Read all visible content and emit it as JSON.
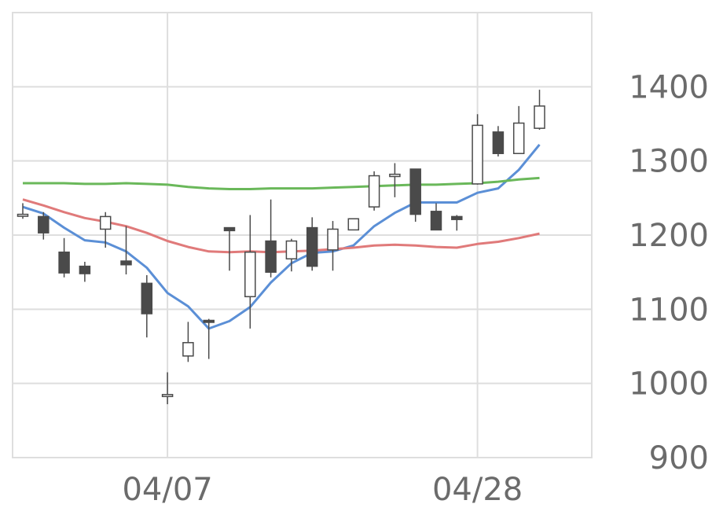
{
  "chart_data": {
    "type": "candlestick",
    "x_ticks": [
      {
        "label": "04/07",
        "index": 7
      },
      {
        "label": "04/28",
        "index": 22
      }
    ],
    "y_ticks": [
      900,
      1000,
      1100,
      1200,
      1300,
      1400
    ],
    "ylim": [
      900,
      1500
    ],
    "grid": true,
    "y_axis_position": "right",
    "candles": [
      {
        "i": 0,
        "open": 1228,
        "close": 1228,
        "high": 1243,
        "low": 1222
      },
      {
        "i": 1,
        "open": 1225,
        "close": 1203,
        "high": 1231,
        "low": 1194
      },
      {
        "i": 2,
        "open": 1177,
        "close": 1149,
        "high": 1196,
        "low": 1143
      },
      {
        "i": 3,
        "open": 1158,
        "close": 1148,
        "high": 1164,
        "low": 1137
      },
      {
        "i": 4,
        "open": 1208,
        "close": 1225,
        "high": 1231,
        "low": 1183
      },
      {
        "i": 5,
        "open": 1165,
        "close": 1160,
        "high": 1212,
        "low": 1147
      },
      {
        "i": 6,
        "open": 1135,
        "close": 1094,
        "high": 1146,
        "low": 1062
      },
      {
        "i": 7,
        "open": 983,
        "close": 985,
        "high": 1015,
        "low": 972
      },
      {
        "i": 8,
        "open": 1037,
        "close": 1055,
        "high": 1083,
        "low": 1029
      },
      {
        "i": 9,
        "open": 1085,
        "close": 1083,
        "high": 1087,
        "low": 1033
      },
      {
        "i": 10,
        "open": 1210,
        "close": 1206,
        "high": 1210,
        "low": 1152
      },
      {
        "i": 11,
        "open": 1117,
        "close": 1177,
        "high": 1227,
        "low": 1074
      },
      {
        "i": 12,
        "open": 1192,
        "close": 1150,
        "high": 1248,
        "low": 1143
      },
      {
        "i": 13,
        "open": 1168,
        "close": 1192,
        "high": 1195,
        "low": 1151
      },
      {
        "i": 14,
        "open": 1210,
        "close": 1158,
        "high": 1224,
        "low": 1152
      },
      {
        "i": 15,
        "open": 1180,
        "close": 1208,
        "high": 1219,
        "low": 1152
      },
      {
        "i": 16,
        "open": 1207,
        "close": 1222,
        "high": 1222,
        "low": 1207
      },
      {
        "i": 17,
        "open": 1238,
        "close": 1280,
        "high": 1286,
        "low": 1233
      },
      {
        "i": 18,
        "open": 1279,
        "close": 1282,
        "high": 1297,
        "low": 1251
      },
      {
        "i": 19,
        "open": 1289,
        "close": 1228,
        "high": 1289,
        "low": 1218
      },
      {
        "i": 20,
        "open": 1232,
        "close": 1207,
        "high": 1243,
        "low": 1207
      },
      {
        "i": 21,
        "open": 1225,
        "close": 1221,
        "high": 1227,
        "low": 1206
      },
      {
        "i": 22,
        "open": 1269,
        "close": 1348,
        "high": 1363,
        "low": 1268
      },
      {
        "i": 23,
        "open": 1339,
        "close": 1310,
        "high": 1347,
        "low": 1306
      },
      {
        "i": 24,
        "open": 1310,
        "close": 1351,
        "high": 1374,
        "low": 1310
      },
      {
        "i": 25,
        "open": 1344,
        "close": 1374,
        "high": 1396,
        "low": 1342
      }
    ],
    "moving_averages": [
      {
        "color": "#5b8fd6",
        "values": [
          1238,
          1229,
          1210,
          1193,
          1190,
          1178,
          1156,
          1122,
          1104,
          1074,
          1084,
          1103,
          1136,
          1162,
          1176,
          1178,
          1186,
          1212,
          1230,
          1244,
          1244,
          1244,
          1257,
          1263,
          1288,
          1322
        ]
      },
      {
        "color": "#e07a7a",
        "values": [
          1248,
          1240,
          1231,
          1223,
          1218,
          1212,
          1203,
          1192,
          1184,
          1178,
          1177,
          1178,
          1177,
          1178,
          1179,
          1181,
          1183,
          1186,
          1187,
          1186,
          1184,
          1183,
          1188,
          1191,
          1196,
          1202
        ]
      },
      {
        "color": "#6ab85a",
        "values": [
          1270,
          1270,
          1270,
          1269,
          1269,
          1270,
          1269,
          1268,
          1265,
          1263,
          1262,
          1262,
          1263,
          1263,
          1263,
          1264,
          1265,
          1266,
          1267,
          1268,
          1268,
          1269,
          1270,
          1272,
          1275,
          1277
        ]
      }
    ],
    "colors": {
      "up_fill": "#ffffff",
      "down_fill": "#4a4a4a",
      "candle_stroke": "#4a4a4a",
      "grid": "#dedede",
      "frame": "#dedede",
      "tick_text": "#6b6b6b"
    }
  }
}
